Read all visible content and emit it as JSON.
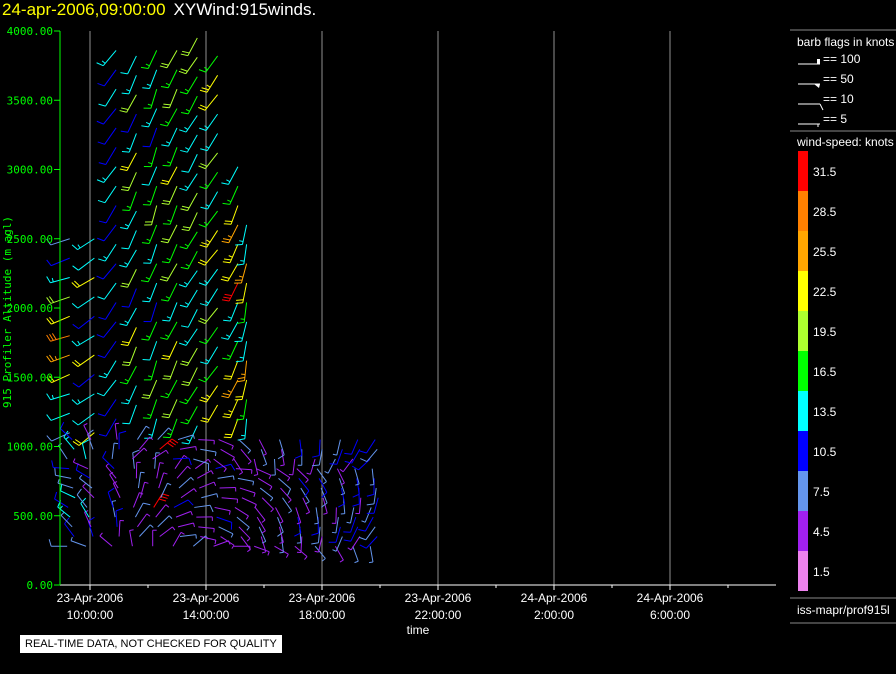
{
  "header": {
    "date": "24-apr-2006,09:00:00",
    "product": "XYWind:915winds."
  },
  "footer": {
    "qc_notice": "REAL-TIME DATA, NOT CHECKED FOR QUALITY"
  },
  "legend": {
    "barb_title": "barb flags in knots",
    "barb_items": [
      "== 100",
      "== 50",
      "== 10",
      "== 5"
    ],
    "speed_title": "wind-speed: knots",
    "speed_bins": [
      {
        "label": "31.5",
        "color": "#ff0000"
      },
      {
        "label": "28.5",
        "color": "#ff8000"
      },
      {
        "label": "25.5",
        "color": "#ffa500"
      },
      {
        "label": "22.5",
        "color": "#ffff00"
      },
      {
        "label": "19.5",
        "color": "#adff2f"
      },
      {
        "label": "16.5",
        "color": "#00ff00"
      },
      {
        "label": "13.5",
        "color": "#00ffff"
      },
      {
        "label": "10.5",
        "color": "#0000ff"
      },
      {
        "label": "7.5",
        "color": "#6495ed"
      },
      {
        "label": "4.5",
        "color": "#a020f0"
      },
      {
        "label": "1.5",
        "color": "#ee82ee"
      }
    ],
    "source": "iss-mapr/prof915l"
  },
  "chart_data": {
    "type": "wind-barb",
    "ylabel": "915 Profiler Altitude (m agl)",
    "xlabel": "time",
    "ylim": [
      0,
      4000
    ],
    "yticks": [
      "0.00",
      "500.00",
      "1000.00",
      "1500.00",
      "2000.00",
      "2500.00",
      "3000.00",
      "3500.00",
      "4000.00"
    ],
    "xticks": [
      {
        "date": "23-Apr-2006",
        "time": "10:00:00",
        "h": 0
      },
      {
        "date": "23-Apr-2006",
        "time": "14:00:00",
        "h": 4
      },
      {
        "date": "23-Apr-2006",
        "time": "18:00:00",
        "h": 8
      },
      {
        "date": "23-Apr-2006",
        "time": "22:00:00",
        "h": 12
      },
      {
        "date": "24-Apr-2006",
        "time": "2:00:00",
        "h": 16
      },
      {
        "date": "24-Apr-2006",
        "time": "6:00:00",
        "h": 20
      }
    ],
    "xlim_hours_from_first_tick": [
      -1.05,
      23.6
    ],
    "high_mode": [
      {
        "h": -0.7,
        "bottom": 1100,
        "top": 2500,
        "dir": 250,
        "speeds": [
          8,
          12,
          14,
          22,
          24,
          28,
          22,
          18,
          14,
          11
        ]
      },
      {
        "h": 0.15,
        "bottom": 1100,
        "top": 2600,
        "dir": 235,
        "speeds": [
          22,
          12,
          14,
          11,
          21,
          13,
          10,
          12
        ]
      },
      {
        "h": 0.9,
        "bottom": 1200,
        "top": 3950,
        "dir": 215,
        "speeds": [
          11,
          10,
          12,
          14,
          11,
          10,
          9,
          12,
          11,
          13
        ]
      },
      {
        "h": 1.6,
        "bottom": 1300,
        "top": 3950,
        "dir": 205,
        "speeds": [
          12,
          14,
          17,
          20,
          22,
          14,
          11,
          18,
          13
        ]
      },
      {
        "h": 2.3,
        "bottom": 1200,
        "top": 3950,
        "dir": 200,
        "speeds": [
          13,
          16,
          18,
          17,
          12,
          16,
          11,
          13,
          17
        ]
      },
      {
        "h": 3.0,
        "bottom": 1200,
        "top": 3950,
        "dir": 205,
        "speeds": [
          16,
          18,
          17,
          20,
          22,
          17,
          13,
          16,
          18
        ]
      },
      {
        "h": 3.7,
        "bottom": 1150,
        "top": 3950,
        "dir": 210,
        "speeds": [
          14,
          16,
          17,
          19,
          18,
          13,
          12,
          14
        ]
      },
      {
        "h": 4.4,
        "bottom": 1300,
        "top": 3900,
        "dir": 215,
        "speeds": [
          22,
          23,
          16,
          13,
          17,
          20,
          14,
          13
        ]
      },
      {
        "h": 5.1,
        "bottom": 1200,
        "top": 3150,
        "dir": 205,
        "speeds": [
          21,
          23,
          26,
          22,
          17,
          14,
          13,
          31
        ]
      },
      {
        "h": 5.4,
        "bottom": 1200,
        "top": 2700,
        "dir": 190,
        "speeds": [
          13,
          16,
          22,
          24,
          14
        ]
      }
    ],
    "low_mode": [
      {
        "h": -0.65,
        "dir": 300,
        "speeds": [
          8,
          10,
          6,
          14,
          9,
          12,
          7
        ]
      },
      {
        "h": 0.0,
        "dir": 320,
        "speeds": [
          6,
          9,
          4,
          12,
          8,
          5
        ]
      },
      {
        "h": 0.9,
        "dir": 340,
        "speeds": [
          5,
          4,
          9,
          6,
          11,
          3
        ]
      },
      {
        "h": 1.6,
        "dir": 20,
        "speeds": [
          4,
          6,
          3,
          8,
          5
        ]
      },
      {
        "h": 2.3,
        "dir": 30,
        "speeds": [
          5,
          3,
          6,
          4,
          32,
          7
        ]
      },
      {
        "h": 3.0,
        "dir": 60,
        "speeds": [
          4,
          6,
          5,
          3,
          9
        ]
      },
      {
        "h": 3.7,
        "dir": 80,
        "speeds": [
          6,
          4,
          5,
          3,
          8
        ]
      },
      {
        "h": 4.4,
        "dir": 100,
        "speeds": [
          5,
          4,
          6,
          9,
          3
        ]
      },
      {
        "h": 5.1,
        "dir": 120,
        "speeds": [
          4,
          5,
          3,
          6
        ]
      },
      {
        "h": 5.8,
        "dir": 140,
        "speeds": [
          5,
          4,
          6,
          3
        ]
      },
      {
        "h": 6.5,
        "dir": 150,
        "speeds": [
          4,
          6,
          5,
          8
        ]
      },
      {
        "h": 7.2,
        "dir": 160,
        "speeds": [
          5,
          4,
          7,
          9
        ]
      },
      {
        "h": 7.9,
        "dir": 170,
        "speeds": [
          6,
          5,
          8,
          11
        ]
      },
      {
        "h": 8.6,
        "dir": 180,
        "speeds": [
          5,
          7,
          10,
          6
        ]
      },
      {
        "h": 9.2,
        "dir": 190,
        "speeds": [
          7,
          5,
          11,
          9
        ]
      },
      {
        "h": 9.8,
        "dir": 200,
        "speeds": [
          6,
          9,
          8,
          11
        ]
      }
    ]
  }
}
